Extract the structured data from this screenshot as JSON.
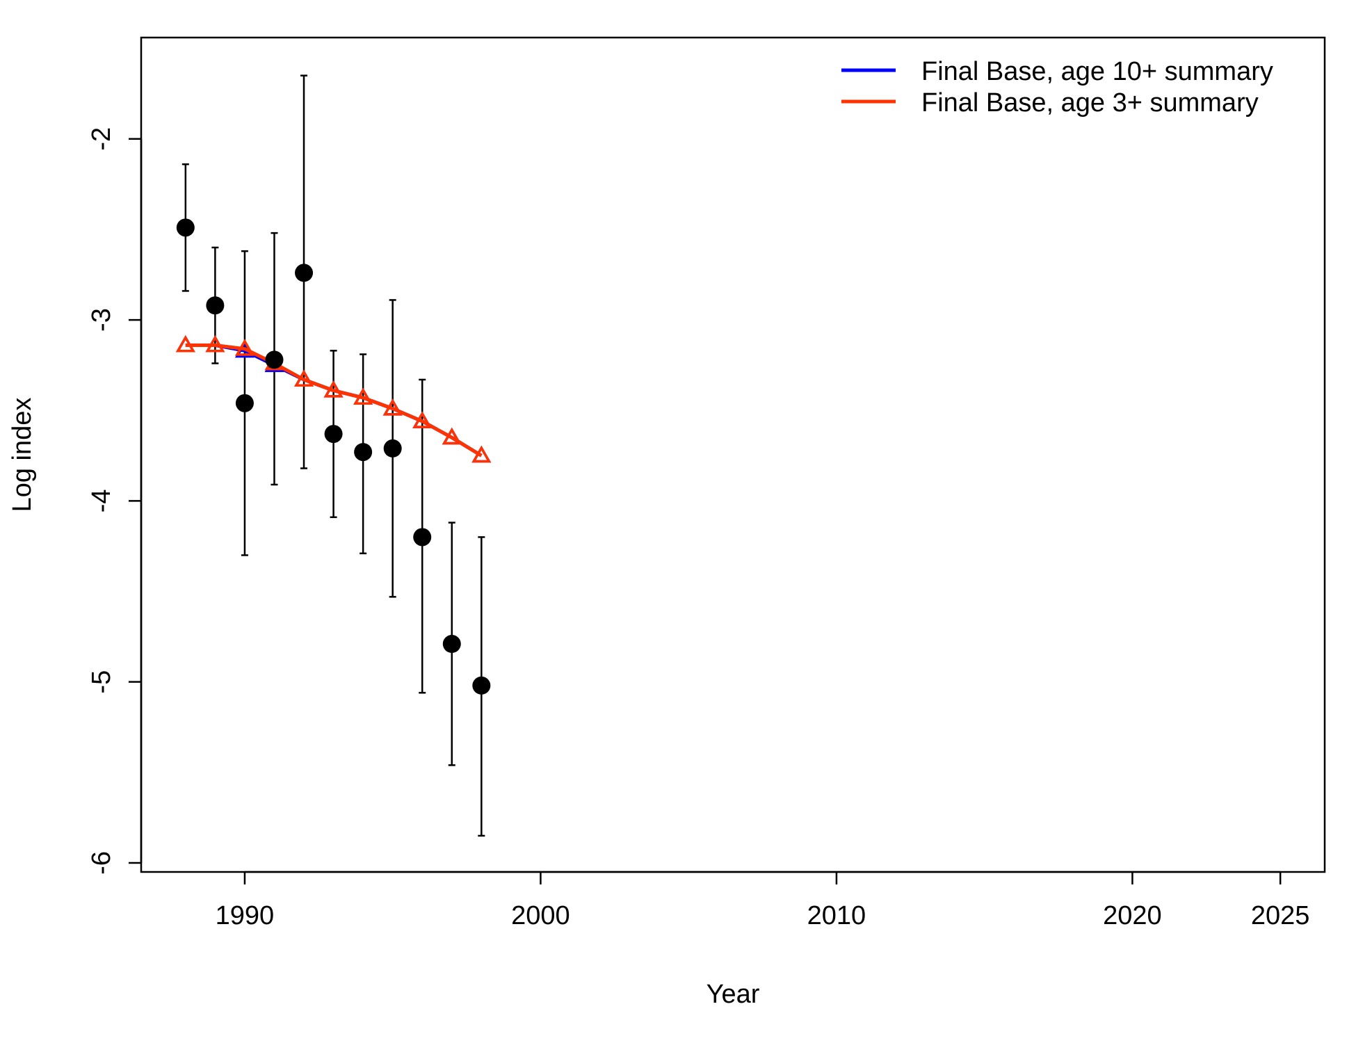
{
  "chart_data": {
    "type": "line",
    "title": "",
    "xlabel": "Year",
    "ylabel": "Log index",
    "xlim": [
      1986.5,
      2026.5
    ],
    "ylim": [
      -6.05,
      -1.44
    ],
    "x_ticks": [
      1990,
      2000,
      2010,
      2020,
      2025
    ],
    "y_ticks": [
      -6,
      -5,
      -4,
      -3,
      -2
    ],
    "grid": false,
    "legend_position": "top-right",
    "observed": {
      "x": [
        1988,
        1989,
        1990,
        1991,
        1992,
        1993,
        1994,
        1995,
        1996,
        1997,
        1998
      ],
      "y": [
        -2.49,
        -2.92,
        -3.46,
        -3.22,
        -2.74,
        -3.63,
        -3.73,
        -3.71,
        -4.2,
        -4.79,
        -5.02
      ],
      "lower": [
        -2.84,
        -3.24,
        -4.3,
        -3.91,
        -3.82,
        -4.09,
        -4.29,
        -4.53,
        -5.06,
        -5.46,
        -5.85
      ],
      "upper": [
        -2.14,
        -2.6,
        -2.62,
        -2.52,
        -1.65,
        -3.17,
        -3.19,
        -2.89,
        -3.33,
        -4.12,
        -4.2
      ]
    },
    "series": [
      {
        "name": "Final Base, age 10+ summary",
        "color": "#0000ff",
        "x": [
          1988,
          1989,
          1990,
          1991,
          1992,
          1993,
          1994,
          1995,
          1996,
          1997,
          1998
        ],
        "y": [
          -3.14,
          -3.14,
          -3.17,
          -3.25,
          -3.33,
          -3.39,
          -3.43,
          -3.49,
          -3.56,
          -3.65,
          -3.75
        ]
      },
      {
        "name": "Final Base, age 3+ summary",
        "color": "#ff3300",
        "x": [
          1988,
          1989,
          1990,
          1991,
          1992,
          1993,
          1994,
          1995,
          1996,
          1997,
          1998
        ],
        "y": [
          -3.14,
          -3.14,
          -3.16,
          -3.24,
          -3.33,
          -3.39,
          -3.43,
          -3.49,
          -3.56,
          -3.65,
          -3.75
        ]
      }
    ]
  }
}
